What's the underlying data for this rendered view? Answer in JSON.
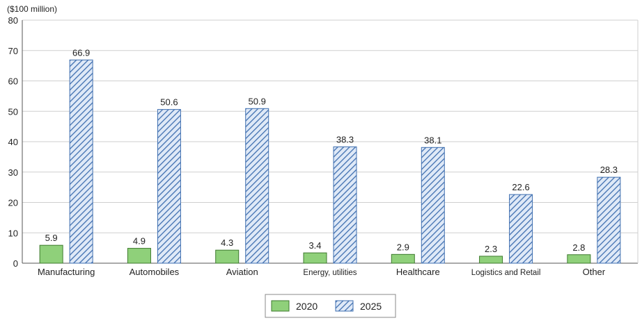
{
  "chart_data": {
    "type": "bar",
    "unit_label": "($100 million)",
    "categories": [
      "Manufacturing",
      "Automobiles",
      "Aviation",
      "Energy, utilities",
      "Healthcare",
      "Logistics and Retail",
      "Other"
    ],
    "series": [
      {
        "name": "2020",
        "values": [
          5.9,
          4.9,
          4.3,
          3.4,
          2.9,
          2.3,
          2.8
        ],
        "color": "#8fd07a",
        "pattern": "solid"
      },
      {
        "name": "2025",
        "values": [
          66.9,
          50.6,
          50.9,
          38.3,
          38.1,
          22.6,
          28.3
        ],
        "color": "#3f6fb0",
        "pattern": "diagonal-hatch"
      }
    ],
    "data_labels": {
      "2020": [
        "5.9",
        "4.9",
        "4.3",
        "3.4",
        "2.9",
        "2.3",
        "2.8"
      ],
      "2025": [
        "66.9",
        "50.6",
        "50.9",
        "38.3",
        "38.1",
        "22.6",
        "28.3"
      ]
    },
    "y_ticks": [
      "0",
      "10",
      "20",
      "30",
      "40",
      "50",
      "60",
      "70",
      "80"
    ],
    "ylim": [
      0,
      80
    ],
    "grid": true,
    "legend_position": "bottom-center"
  }
}
